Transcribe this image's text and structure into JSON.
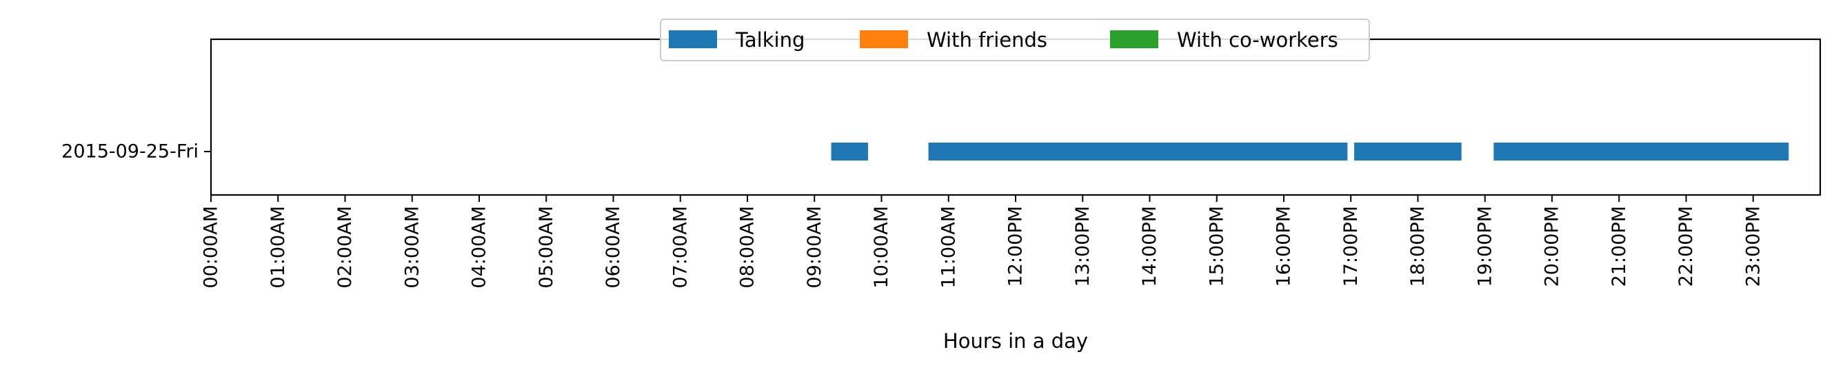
{
  "chart_data": {
    "type": "bar",
    "orientation": "horizontal-timeline",
    "title": "",
    "xlabel": "Hours in a day",
    "ylabel": "",
    "xlim": [
      0,
      24
    ],
    "x_tick_labels": [
      "00:00AM",
      "01:00AM",
      "02:00AM",
      "03:00AM",
      "04:00AM",
      "05:00AM",
      "06:00AM",
      "07:00AM",
      "08:00AM",
      "09:00AM",
      "10:00AM",
      "11:00AM",
      "12:00PM",
      "13:00PM",
      "14:00PM",
      "15:00PM",
      "16:00PM",
      "17:00PM",
      "18:00PM",
      "19:00PM",
      "20:00PM",
      "21:00PM",
      "22:00PM",
      "23:00PM"
    ],
    "categories": [
      "2015-09-25-Fri"
    ],
    "grid": false,
    "legend_position": "top-center",
    "series": [
      {
        "name": "Talking",
        "color": "#1f77b4",
        "segments": [
          {
            "category": "2015-09-25-Fri",
            "start": 9.25,
            "end": 9.8
          },
          {
            "category": "2015-09-25-Fri",
            "start": 10.7,
            "end": 16.95
          },
          {
            "category": "2015-09-25-Fri",
            "start": 17.05,
            "end": 18.65
          },
          {
            "category": "2015-09-25-Fri",
            "start": 19.13,
            "end": 23.53
          }
        ]
      },
      {
        "name": "With friends",
        "color": "#ff7f0e",
        "segments": []
      },
      {
        "name": "With co-workers",
        "color": "#2ca02c",
        "segments": []
      }
    ]
  }
}
